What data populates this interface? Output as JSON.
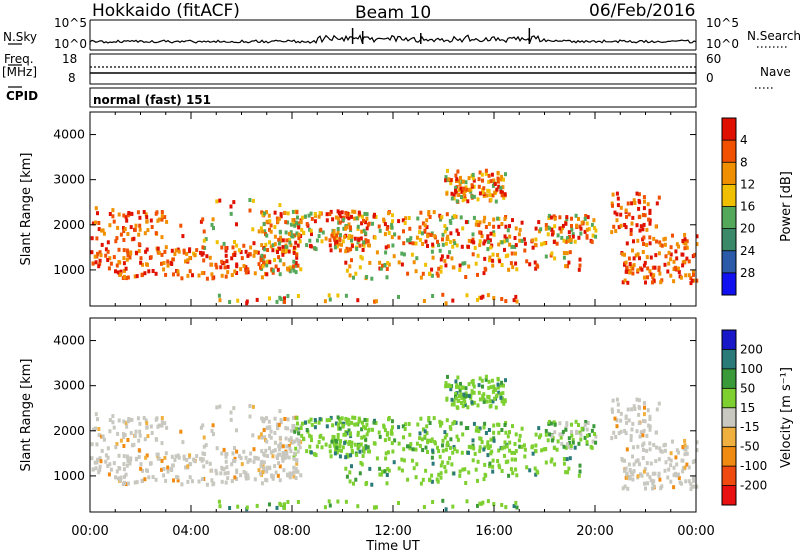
{
  "header": {
    "station": "Hokkaido (fitACF)",
    "beam": "Beam 10",
    "date": "06/Feb/2016"
  },
  "panels": {
    "nsky_label": "N.Sky",
    "nsearch_label": "N.Search",
    "freq_label_1": "Freq.",
    "freq_label_2": "[MHz]",
    "nave_label": "Nave",
    "cpid_label": "CPID",
    "cpid_value": "normal (fast) 151",
    "nsky_ticks": [
      "10^5",
      "10^0"
    ],
    "nsearch_ticks": [
      "10^5",
      "10^0"
    ],
    "freq_ticks": [
      "18",
      "8"
    ],
    "nave_ticks": [
      "60",
      "0"
    ]
  },
  "colors": {
    "power_scale": [
      "#1010f0",
      "#2a5aa8",
      "#3a8a6a",
      "#54a85a",
      "#f0c000",
      "#f09000",
      "#f05000",
      "#e01000"
    ],
    "velocity_scale": [
      "#e81010",
      "#f04a10",
      "#f08a10",
      "#f0b040",
      "#c8c8c0",
      "#7ed030",
      "#3a9a3a",
      "#2a7a7a",
      "#1818c8"
    ]
  },
  "chart_data": [
    {
      "type": "heatmap",
      "quantity": "Power",
      "xlabel": "",
      "ylabel": "Slant Range [km]",
      "xlim": [
        "00:00",
        "00:00"
      ],
      "x_ticks": [
        "00:00",
        "04:00",
        "08:00",
        "12:00",
        "16:00",
        "20:00",
        "00:00"
      ],
      "ylim": [
        200,
        4500
      ],
      "y_ticks": [
        "1000",
        "2000",
        "3000",
        "4000"
      ],
      "colorbar": {
        "label": "Power [dB]",
        "ticks": [
          "4",
          "8",
          "12",
          "16",
          "20",
          "24",
          "28"
        ]
      }
    },
    {
      "type": "heatmap",
      "quantity": "Velocity",
      "xlabel": "Time UT",
      "ylabel": "Slant Range [km]",
      "xlim": [
        "00:00",
        "00:00"
      ],
      "x_ticks": [
        "00:00",
        "04:00",
        "08:00",
        "12:00",
        "16:00",
        "20:00",
        "00:00"
      ],
      "ylim": [
        200,
        4500
      ],
      "y_ticks": [
        "1000",
        "2000",
        "3000",
        "4000"
      ],
      "colorbar": {
        "label": "Velocity [m s⁻¹]",
        "ticks": [
          "200",
          "100",
          "50",
          "15",
          "-15",
          "-50",
          "-100",
          "-200"
        ]
      }
    }
  ]
}
